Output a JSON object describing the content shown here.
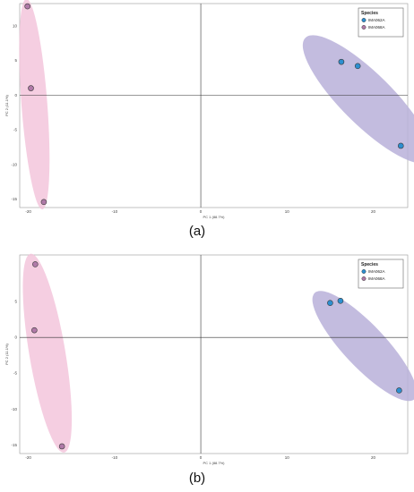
{
  "chart_data": [
    {
      "type": "scatter",
      "panel_label": "(a)",
      "xlabel": "PC 1 (88.7%)",
      "ylabel": "PC 2 (11.1%)",
      "xlim": [
        -21,
        24
      ],
      "ylim": [
        -16.2,
        13.2
      ],
      "xticks": [
        -20,
        -10,
        0,
        10,
        20
      ],
      "yticks": [
        10,
        5,
        0,
        -5,
        -10,
        -15
      ],
      "legend_title": "Species",
      "legend_position": "top-right",
      "series": [
        {
          "name": "IMA062A",
          "color": "#2d8fd0",
          "x": [
            16.3,
            18.2,
            23.2
          ],
          "y": [
            4.8,
            4.2,
            -7.3
          ],
          "ellipse": {
            "cx": 19.3,
            "cy": -0.6,
            "rx": 11.4,
            "ry": 3.2,
            "angle_deg": -51
          }
        },
        {
          "name": "IMA068A",
          "color": "#b07aa8",
          "x": [
            -20.1,
            -19.7,
            -18.2
          ],
          "y": [
            12.8,
            1.0,
            -15.4
          ],
          "ellipse": {
            "cx": -19.3,
            "cy": -1.3,
            "rx": 15.2,
            "ry": 1.5,
            "angle_deg": -86.5
          }
        }
      ]
    },
    {
      "type": "scatter",
      "panel_label": "(b)",
      "xlabel": "PC 1 (88.7%)",
      "ylabel": "PC 2 (11.1%)",
      "xlim": [
        -21,
        24
      ],
      "ylim": [
        -16.2,
        11.5
      ],
      "xticks": [
        -20,
        -10,
        0,
        10,
        20
      ],
      "yticks": [
        5,
        0,
        -5,
        -10,
        -15
      ],
      "legend_title": "Species",
      "legend_position": "top-right",
      "series": [
        {
          "name": "IMA062A",
          "color": "#2d8fd0",
          "x": [
            15.0,
            16.2,
            23.0
          ],
          "y": [
            4.8,
            5.1,
            -7.4
          ],
          "ellipse": {
            "cx": 19.0,
            "cy": -1.2,
            "rx": 9.4,
            "ry": 2.6,
            "angle_deg": -52
          }
        },
        {
          "name": "IMA068A",
          "color": "#b07aa8",
          "x": [
            -19.2,
            -19.3,
            -16.1
          ],
          "y": [
            10.2,
            1.0,
            -15.2
          ],
          "ellipse": {
            "cx": -17.8,
            "cy": -2.2,
            "rx": 14.0,
            "ry": 2.1,
            "angle_deg": -82
          }
        }
      ]
    }
  ],
  "ellipse_colors": {
    "IMA062A": "#b8b0d9",
    "IMA068A": "#f3c6dc"
  }
}
